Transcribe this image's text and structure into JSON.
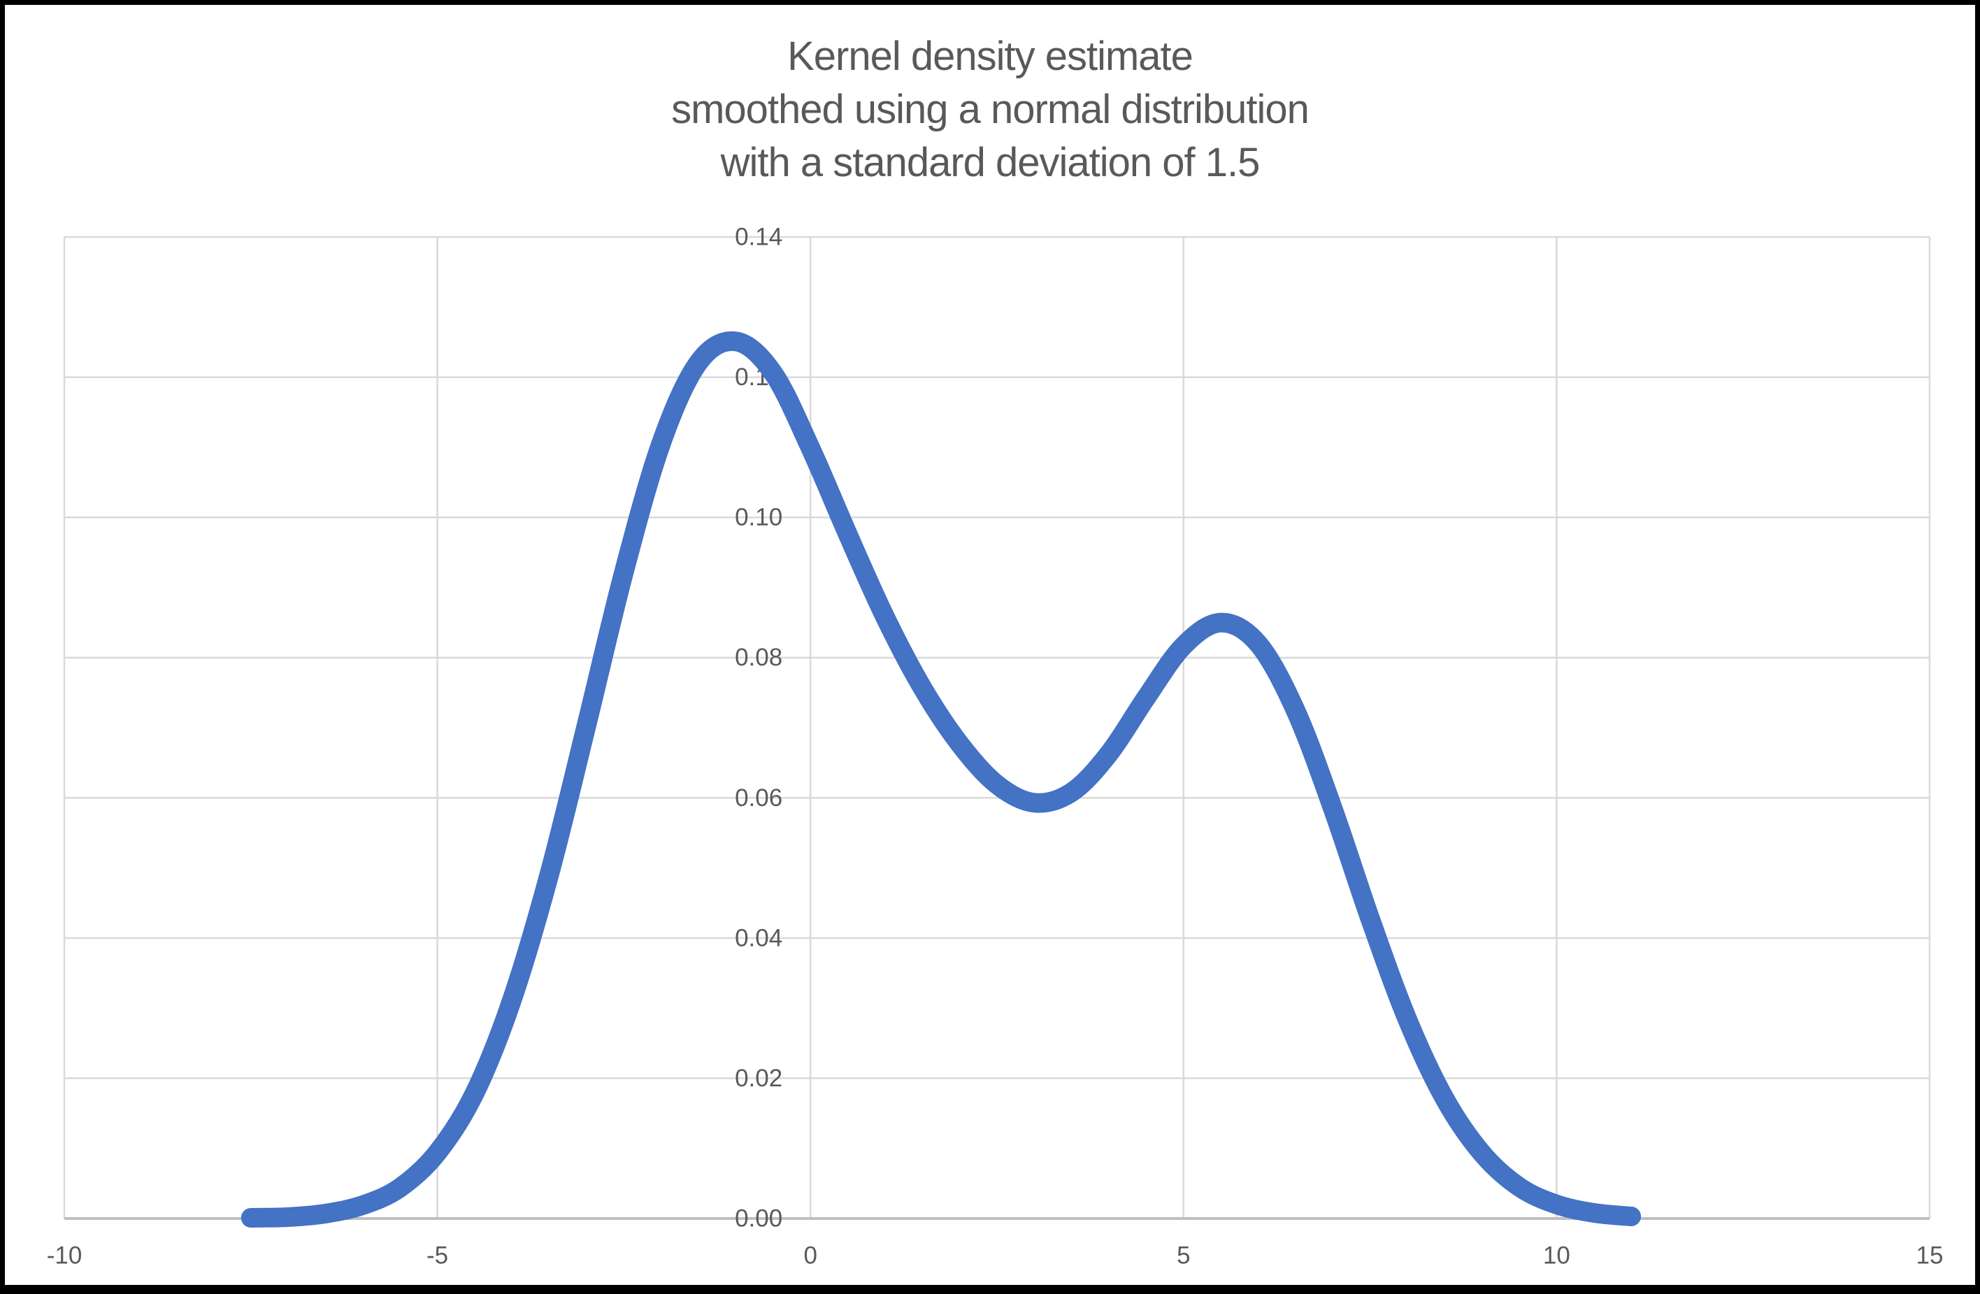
{
  "title": {
    "lines": [
      "Kernel density estimate",
      "smoothed using a normal distribution",
      "with a standard deviation of 1.5"
    ]
  },
  "colors": {
    "curve": "#4472C4",
    "gridline": "#D9D9D9",
    "axis_line": "#BFBFBF",
    "text": "#595959",
    "background": "#FFFFFF",
    "frame_border": "#000000"
  },
  "chart_data": {
    "type": "line",
    "title": "Kernel density estimate smoothed using a normal distribution with a standard deviation of 1.5",
    "xlabel": "",
    "ylabel": "",
    "xlim": [
      -10,
      15
    ],
    "ylim": [
      0,
      0.14
    ],
    "grid": true,
    "legend": false,
    "x_ticks": {
      "values": [
        -10,
        -5,
        0,
        5,
        10,
        15
      ],
      "labels": [
        "-10",
        "-5",
        "0",
        "5",
        "10",
        "15"
      ]
    },
    "y_ticks": {
      "values": [
        0,
        0.02,
        0.04,
        0.06,
        0.08,
        0.1,
        0.12,
        0.14
      ],
      "labels": [
        "0.00",
        "0.02",
        "0.04",
        "0.06",
        "0.08",
        "0.10",
        "0.12",
        "0.14"
      ]
    },
    "annotations": {
      "first_peak": {
        "x": -1.0,
        "y": 0.125
      },
      "local_minimum": {
        "x": 3.0,
        "y": 0.059
      },
      "second_peak": {
        "x": 5.5,
        "y": 0.085
      },
      "curve_start_x": -7.5,
      "curve_end_x": 11.0
    },
    "series": [
      {
        "name": "Kernel density estimate",
        "x": [
          -7.5,
          -7.0,
          -6.5,
          -6.0,
          -5.5,
          -5.0,
          -4.5,
          -4.0,
          -3.5,
          -3.0,
          -2.5,
          -2.0,
          -1.5,
          -1.0,
          -0.5,
          0.0,
          0.5,
          1.0,
          1.5,
          2.0,
          2.5,
          3.0,
          3.5,
          4.0,
          4.5,
          5.0,
          5.5,
          6.0,
          6.5,
          7.0,
          7.5,
          8.0,
          8.5,
          9.0,
          9.5,
          10.0,
          10.5,
          11.0
        ],
        "y": [
          0.0001,
          0.0002,
          0.0007,
          0.0019,
          0.0044,
          0.0094,
          0.0179,
          0.0312,
          0.0491,
          0.0704,
          0.0922,
          0.1106,
          0.1221,
          0.1251,
          0.1206,
          0.1099,
          0.0976,
          0.0858,
          0.0757,
          0.0677,
          0.0619,
          0.0593,
          0.0608,
          0.0663,
          0.0743,
          0.0817,
          0.085,
          0.082,
          0.0725,
          0.0585,
          0.0428,
          0.0284,
          0.0171,
          0.0093,
          0.0045,
          0.002,
          0.0008,
          0.0003
        ]
      }
    ]
  }
}
